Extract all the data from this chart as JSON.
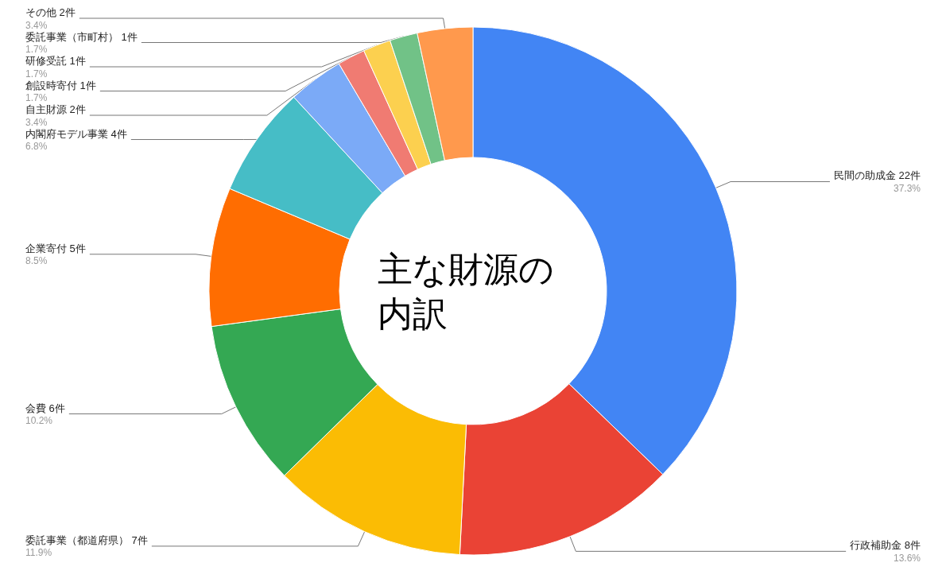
{
  "chart_data": {
    "type": "donut",
    "title": "主な財源の内訳",
    "categories": [
      "民間の助成金 22件",
      "行政補助金 8件",
      "委託事業（都道府県） 7件",
      "会費 6件",
      "企業寄付 5件",
      "内閣府モデル事業 4件",
      "自主財源 2件",
      "創設時寄付 1件",
      "研修受託 1件",
      "委託事業（市町村） 1件",
      "その他 2件"
    ],
    "values": [
      37.3,
      13.6,
      11.9,
      10.2,
      8.5,
      6.8,
      3.4,
      1.7,
      1.7,
      1.7,
      3.4
    ],
    "value_labels": [
      "37.3%",
      "13.6%",
      "11.9%",
      "10.2%",
      "8.5%",
      "6.8%",
      "3.4%",
      "1.7%",
      "1.7%",
      "1.7%",
      "3.4%"
    ],
    "colors": [
      "#4285f4",
      "#ea4335",
      "#fbbc04",
      "#34a853",
      "#ff6d01",
      "#46bdc6",
      "#7baaf7",
      "#f07b72",
      "#fcd04f",
      "#71c287",
      "#ff994d"
    ],
    "legend": false
  }
}
